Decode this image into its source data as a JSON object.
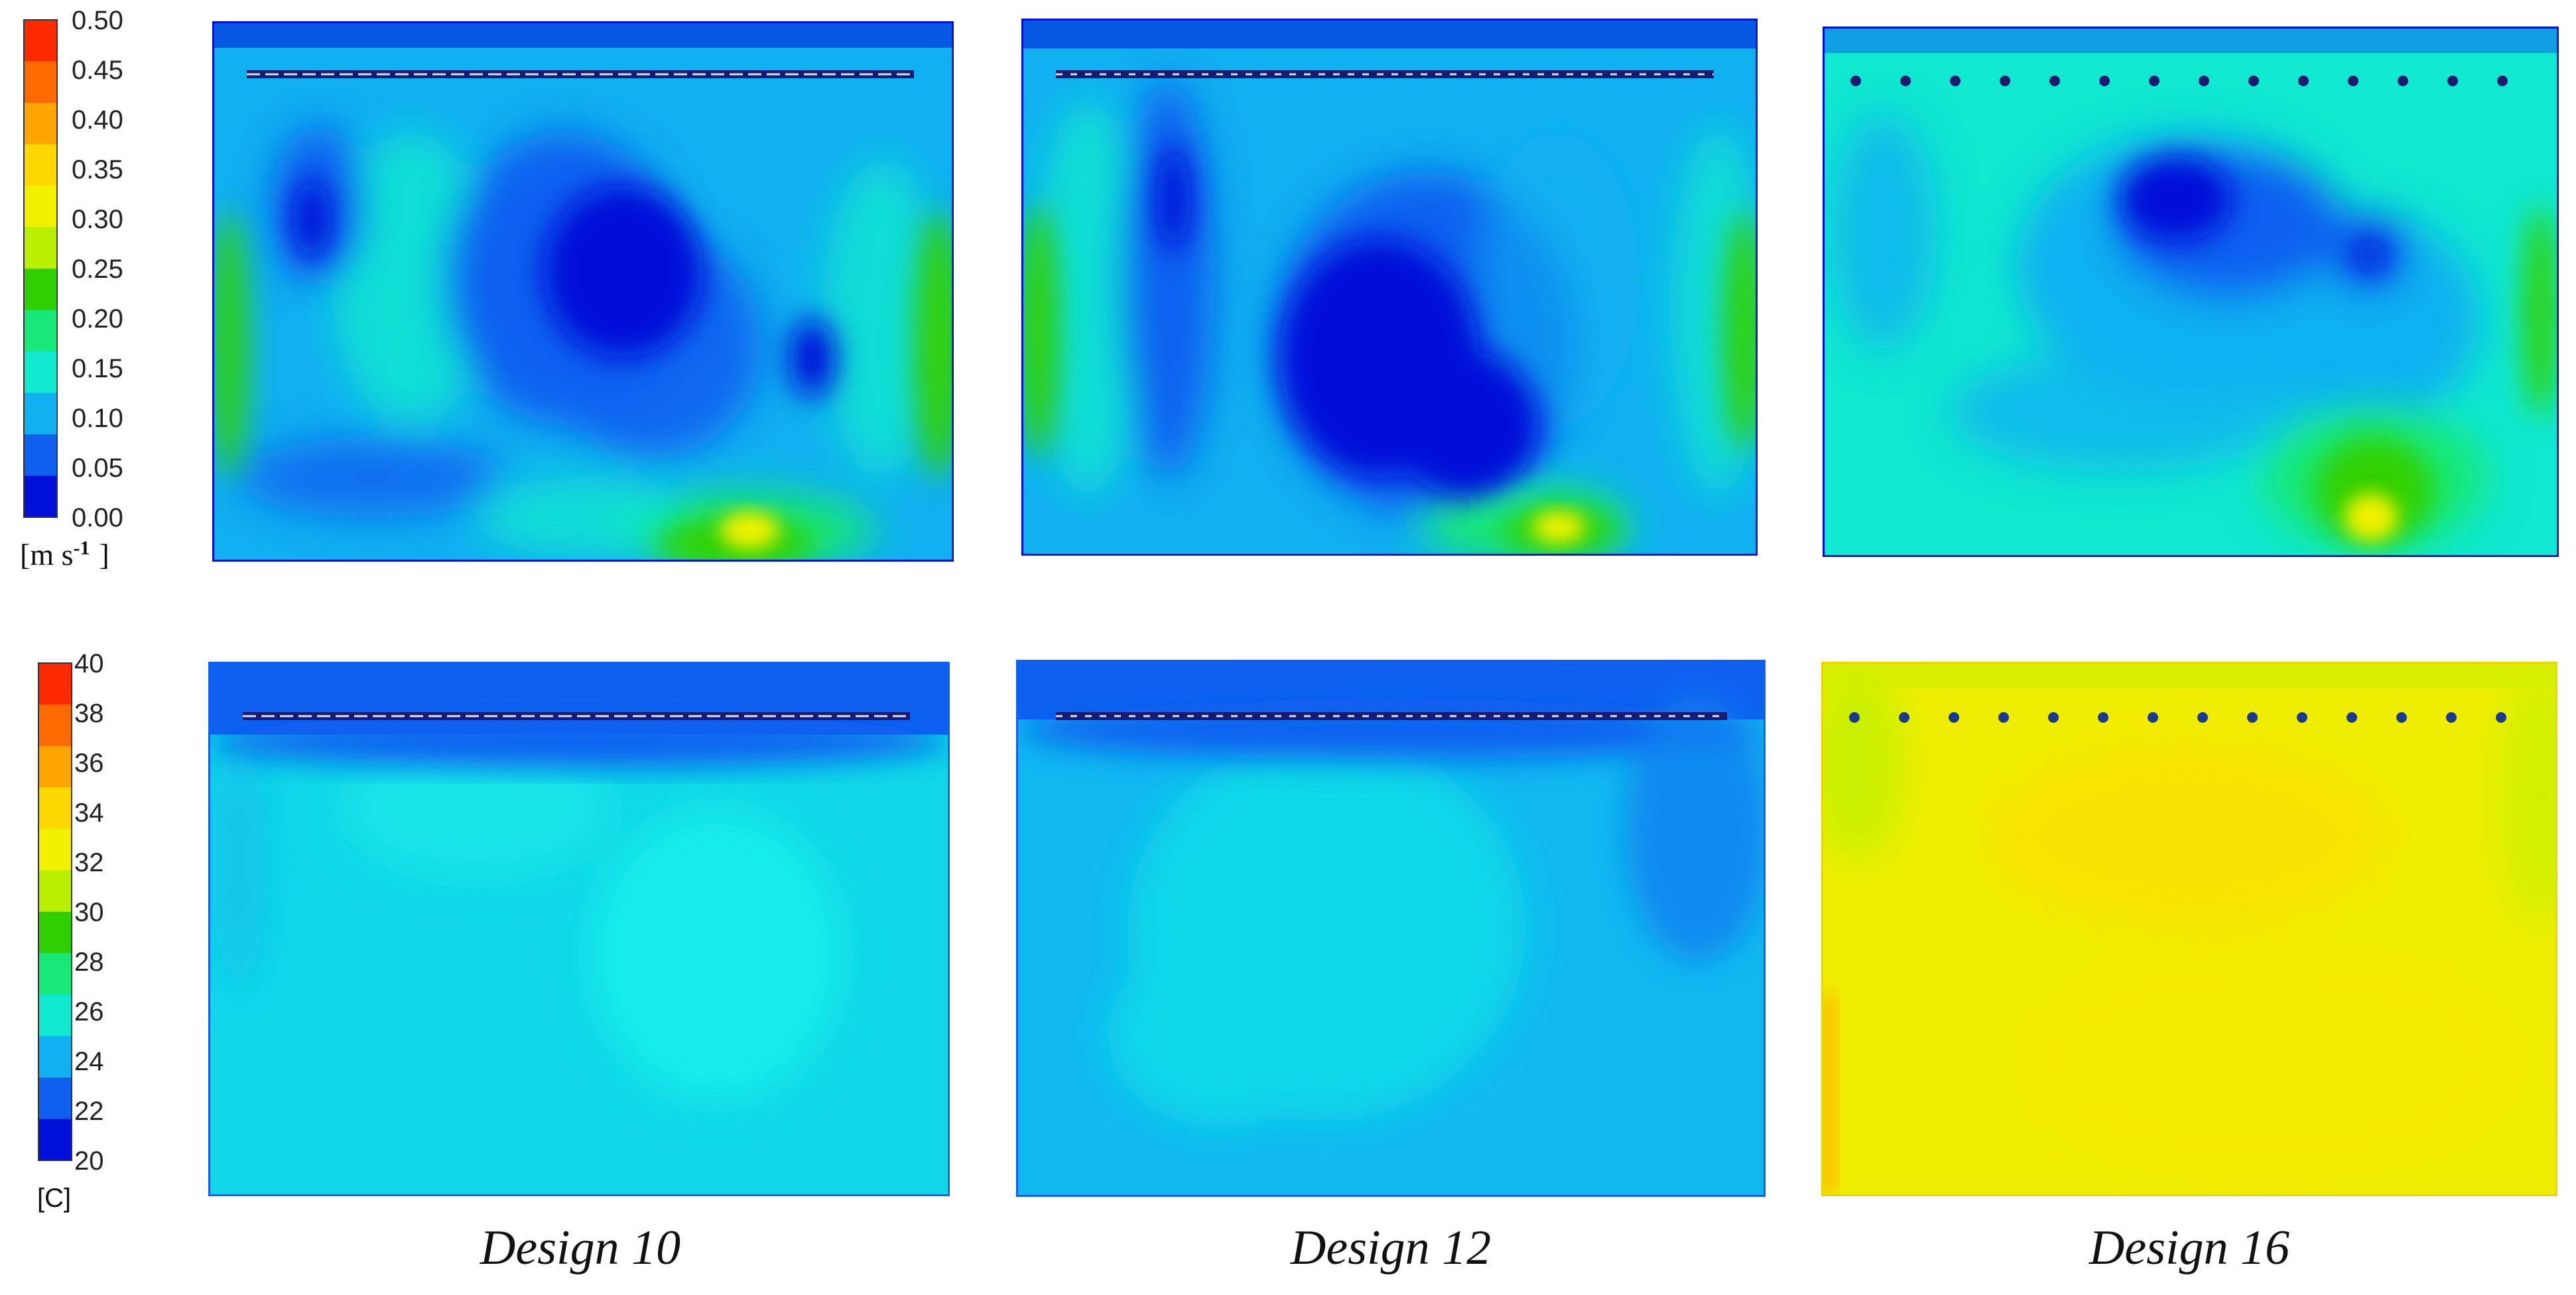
{
  "velocity_legend": {
    "ticks": [
      "0.50",
      "0.45",
      "0.40",
      "0.35",
      "0.30",
      "0.25",
      "0.20",
      "0.15",
      "0.10",
      "0.05",
      "0.00"
    ],
    "unit_label": "[m s",
    "unit_exponent": "-1",
    "unit_close": "]",
    "colors": [
      "#ff2a00",
      "#ff6a00",
      "#ffa400",
      "#ffd800",
      "#f2f200",
      "#b8f000",
      "#30d000",
      "#18e878",
      "#10e8d0",
      "#10b0f0",
      "#1060f0",
      "#0010d8"
    ]
  },
  "temperature_legend": {
    "ticks": [
      "40",
      "38",
      "36",
      "34",
      "32",
      "30",
      "28",
      "26",
      "24",
      "22",
      "20"
    ],
    "unit_label": "[C]",
    "colors": [
      "#ff2a00",
      "#ff6a00",
      "#ffa400",
      "#ffd800",
      "#f2f200",
      "#b8f000",
      "#30d000",
      "#18e878",
      "#10e8d0",
      "#10b0f0",
      "#1060f0",
      "#0010d8"
    ]
  },
  "designs": [
    {
      "caption": "Design 10"
    },
    {
      "caption": "Design 12"
    },
    {
      "caption": "Design 16"
    }
  ],
  "colors": {
    "deep_blue": "#0010d8",
    "blue": "#1060f0",
    "light_blue": "#10b0f0",
    "cyan": "#10e8d0",
    "teal_green": "#18e878",
    "green": "#30d000",
    "yellow_green": "#b8f000",
    "yellow": "#f2f200",
    "orange": "#ffa400",
    "red": "#ff2a00"
  }
}
